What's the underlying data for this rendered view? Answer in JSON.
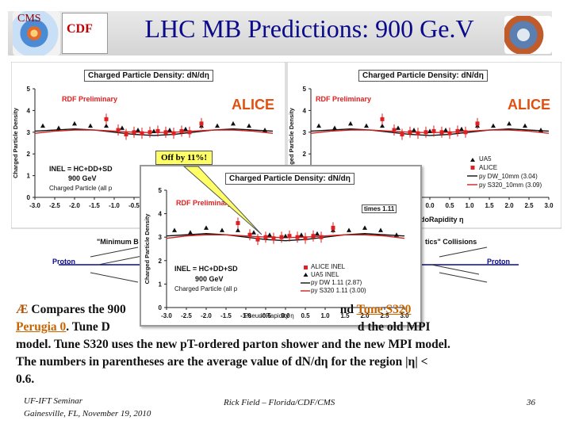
{
  "slide": {
    "title": "LHC MB Predictions: 900 Ge.V",
    "logo_left_text": "CMS",
    "logo_cdf_text": "CDF"
  },
  "plot_common": {
    "panel_title": "Charged Particle Density: dN/dη",
    "rdf_label": "RDF Preliminary",
    "alice_logo_text": "ALICE",
    "x_axis_label": "PseudoRapidity η",
    "y_axis_label": "Charged Particle Density",
    "x_ticks": [
      "-3.0",
      "-2.5",
      "-2.0",
      "-1.5",
      "-1.0",
      "-0.5",
      "0.0",
      "0.5",
      "1.0",
      "1.5",
      "2.0",
      "2.5",
      "3.0"
    ],
    "y_ticks": [
      "0",
      "1",
      "2",
      "3",
      "4",
      "5"
    ]
  },
  "left_plot": {
    "inel_line1": "INEL = HC+DD+SD",
    "inel_line2": "900 GeV",
    "charged_label": "Charged Particle (all p",
    "diagram_caption": "\"Minimum B"
  },
  "right_plot": {
    "legend": [
      "UA5",
      "ALICE",
      "py DW_10mm (3.04)",
      "py S320_10mm (3.09)"
    ],
    "x_axis_fragment": "doRapidity η",
    "diagram_caption": "tics\" Collisions"
  },
  "center_plot": {
    "times_label": "times 1.11",
    "inel_line1": "INEL = HC+DD+SD",
    "inel_line2": "900 GeV",
    "charged_label": "Charged Particle (all p",
    "legend": [
      "ALICE INEL",
      "UA5 INEL",
      "py DW 1.11 (2.87)",
      "py S320 1.11 (3.00)"
    ]
  },
  "callout": {
    "text": "Off by 11%!"
  },
  "diagram": {
    "proton_left": "Proton",
    "proton_right": "Proton"
  },
  "body": {
    "bullet": "Æ",
    "l1a": "Compares the 900",
    "l1b": "nd ",
    "tune_s320": "Tune S320",
    "l2a": "Perugia 0",
    "l2b": ". Tune D",
    "l2c": "d the old MPI",
    "l3": "model. Tune S320 uses the new pT-ordered parton shower and the new MPI model.",
    "l4": "The numbers in parentheses are the average value of dN/dη for the region |η| <",
    "l5": "0.6."
  },
  "footer": {
    "left_line1": "UF-IFT Seminar",
    "left_line2": "Gainesville, FL,  November 19, 2010",
    "center": "Rick Field – Florida/CDF/CMS",
    "page": "36"
  },
  "chart_data": {
    "type": "scatter",
    "title": "Charged Particle Density: dN/dη",
    "xlabel": "PseudoRapidity η",
    "ylabel": "Charged Particle Density",
    "xlim": [
      -3.0,
      3.0
    ],
    "ylim": [
      0,
      5
    ],
    "series": [
      {
        "name": "ALICE INEL",
        "x": [
          -1.2,
          -0.9,
          -0.7,
          -0.5,
          -0.3,
          -0.1,
          0.1,
          0.3,
          0.5,
          0.7,
          0.9,
          1.2
        ],
        "values": [
          3.6,
          3.1,
          2.9,
          3.0,
          2.95,
          3.0,
          3.05,
          3.0,
          2.95,
          3.05,
          3.0,
          3.4
        ]
      },
      {
        "name": "UA5 INEL",
        "x": [
          -2.8,
          -2.4,
          -2.0,
          -1.6,
          -1.2,
          -0.8,
          -0.4,
          0.0,
          0.4,
          0.8,
          1.2,
          1.6,
          2.0,
          2.4,
          2.8
        ],
        "values": [
          3.3,
          3.2,
          3.4,
          3.3,
          3.3,
          3.2,
          3.1,
          3.05,
          3.1,
          3.15,
          3.3,
          3.3,
          3.4,
          3.3,
          3.1
        ]
      },
      {
        "name": "py DW 1.11 (2.87)",
        "x": [
          -3.0,
          -2.5,
          -2.0,
          -1.5,
          -1.0,
          -0.5,
          0.0,
          0.5,
          1.0,
          1.5,
          2.0,
          2.5,
          3.0
        ],
        "values": [
          3.05,
          3.1,
          3.15,
          3.1,
          3.0,
          2.9,
          2.85,
          2.9,
          3.0,
          3.1,
          3.15,
          3.1,
          3.05
        ]
      },
      {
        "name": "py S320 1.11 (3.00)",
        "x": [
          -3.0,
          -2.5,
          -2.0,
          -1.5,
          -1.0,
          -0.5,
          0.0,
          0.5,
          1.0,
          1.5,
          2.0,
          2.5,
          3.0
        ],
        "values": [
          2.95,
          3.05,
          3.1,
          3.1,
          3.05,
          3.0,
          2.98,
          3.0,
          3.05,
          3.1,
          3.1,
          3.05,
          2.95
        ]
      }
    ]
  },
  "colors": {
    "title": "#0a0a8a",
    "tune": "#c86400",
    "alice_red": "#e02020",
    "ua5": "#111111",
    "dw": "#111111",
    "s320": "#d02020",
    "callout_bg": "#ffff66"
  }
}
